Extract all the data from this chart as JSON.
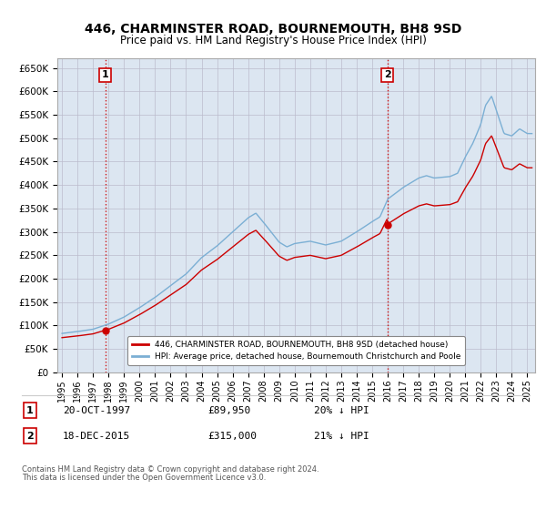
{
  "title": "446, CHARMINSTER ROAD, BOURNEMOUTH, BH8 9SD",
  "subtitle": "Price paid vs. HM Land Registry's House Price Index (HPI)",
  "legend_line1": "446, CHARMINSTER ROAD, BOURNEMOUTH, BH8 9SD (detached house)",
  "legend_line2": "HPI: Average price, detached house, Bournemouth Christchurch and Poole",
  "footer1": "Contains HM Land Registry data © Crown copyright and database right 2024.",
  "footer2": "This data is licensed under the Open Government Licence v3.0.",
  "sale1_label": "1",
  "sale1_date": "20-OCT-1997",
  "sale1_price": "£89,950",
  "sale1_hpi": "20% ↓ HPI",
  "sale1_year": 1997.8,
  "sale1_value": 89950,
  "sale2_label": "2",
  "sale2_date": "18-DEC-2015",
  "sale2_price": "£315,000",
  "sale2_hpi": "21% ↓ HPI",
  "sale2_year": 2015.97,
  "sale2_value": 315000,
  "ylim_min": 0,
  "ylim_max": 670000,
  "xlim_min": 1994.7,
  "xlim_max": 2025.5,
  "hpi_color": "#7bafd4",
  "price_color": "#cc0000",
  "dashed_color": "#cc0000",
  "bg_color": "#dce6f1",
  "grid_color": "#bbbbcc"
}
